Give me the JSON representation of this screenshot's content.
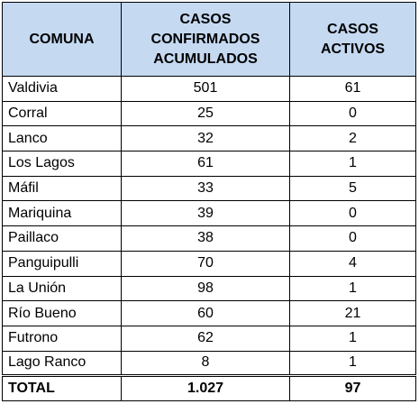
{
  "table": {
    "headers": {
      "comuna": "COMUNA",
      "confirmados": [
        "CASOS",
        "CONFIRMADOS",
        "ACUMULADOS"
      ],
      "activos": "CASOS ACTIVOS"
    },
    "rows": [
      {
        "comuna": "Valdivia",
        "confirmados": "501",
        "activos": "61"
      },
      {
        "comuna": "Corral",
        "confirmados": "25",
        "activos": "0"
      },
      {
        "comuna": "Lanco",
        "confirmados": "32",
        "activos": "2"
      },
      {
        "comuna": "Los Lagos",
        "confirmados": "61",
        "activos": "1"
      },
      {
        "comuna": "Máfil",
        "confirmados": "33",
        "activos": "5"
      },
      {
        "comuna": "Mariquina",
        "confirmados": "39",
        "activos": "0"
      },
      {
        "comuna": "Paillaco",
        "confirmados": "38",
        "activos": "0"
      },
      {
        "comuna": "Panguipulli",
        "confirmados": "70",
        "activos": "4"
      },
      {
        "comuna": "La Unión",
        "confirmados": "98",
        "activos": "1"
      },
      {
        "comuna": "Río Bueno",
        "confirmados": "60",
        "activos": "21"
      },
      {
        "comuna": "Futrono",
        "confirmados": "62",
        "activos": "1"
      },
      {
        "comuna": "Lago Ranco",
        "confirmados": "8",
        "activos": "1"
      }
    ],
    "total": {
      "label": "TOTAL",
      "confirmados": "1.027",
      "activos": "97"
    },
    "header_color": "#c5d9f1"
  }
}
